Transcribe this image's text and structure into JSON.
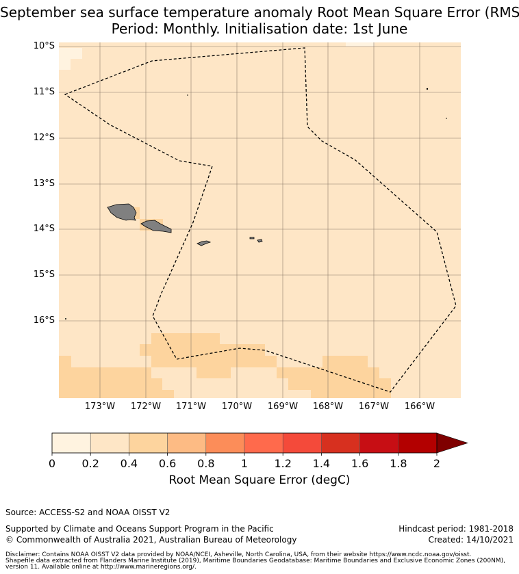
{
  "title_line1": "September sea surface temperature anomaly Root Mean Square Error (RMSE)",
  "title_line2": "Period: Monthly. Initialisation date: 1st June",
  "lat_labels": [
    "10°S",
    "11°S",
    "12°S",
    "13°S",
    "14°S",
    "15°S",
    "16°S"
  ],
  "lon_labels": [
    "173°W",
    "172°W",
    "171°W",
    "170°W",
    "169°W",
    "168°W",
    "167°W",
    "166°W"
  ],
  "colorbar": {
    "label": "Root Mean Square Error (degC)",
    "ticks": [
      "0",
      "0.2",
      "0.4",
      "0.6",
      "0.8",
      "1",
      "1.2",
      "1.4",
      "1.6",
      "1.8",
      "2"
    ],
    "colors": [
      "#fff3e0",
      "#fee6c6",
      "#fdd49e",
      "#fdbb84",
      "#fc8d59",
      "#ff6a4c",
      "#f44a3a",
      "#d7301f",
      "#c70e14",
      "#b30000"
    ],
    "extend_color": "#7f0000"
  },
  "footer": {
    "source": "Source: ACCESS-S2 and NOAA OISST V2",
    "support": "Supported by Climate and Oceans Support Program in the Pacific",
    "copyright": "© Commonwealth of Australia 2021, Australian Bureau of Meteorology",
    "hindcast": "Hindcast period: 1981-2018",
    "created": "Created: 14/10/2021",
    "disclaimer1": "Disclaimer: Contains NOAA OISST V2 data provided by NOAA/NCEI, Asheville, North Carolina, USA, from their website https://www.ncdc.noaa.gov/oisst.",
    "disclaimer2": "Shapefile data extracted from Flanders Marine Institute (2019), Maritime Boundaries Geodatabase: Maritime Boundaries and Exclusive Economic Zones (200NM),",
    "disclaimer3": "version 11. Available online at http://www.marineregions.org/."
  },
  "map_colors": {
    "ocean_base": "#fee6c6",
    "low": "#fff3e0",
    "mid": "#fdd49e",
    "land": "#808080"
  }
}
